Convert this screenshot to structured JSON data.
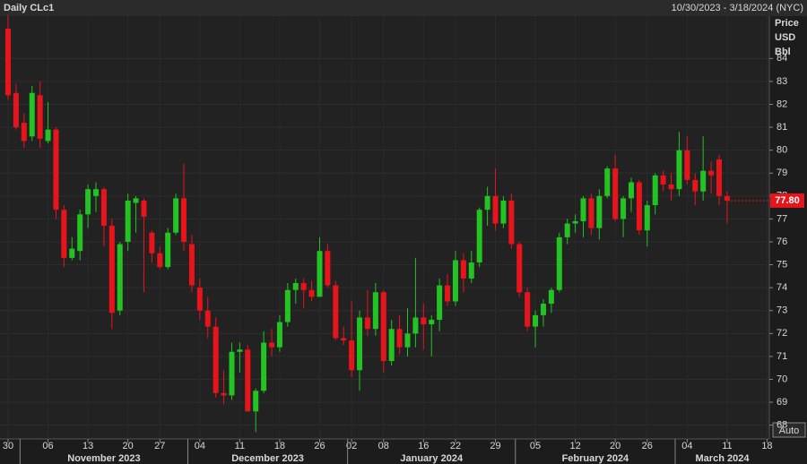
{
  "chart_data": {
    "type": "candlestick",
    "title": "Daily CLc1",
    "date_range": "10/30/2023 - 3/18/2024 (NYC)",
    "y_axis_label": [
      "Price",
      "USD",
      "Bbl"
    ],
    "auto_button": "Auto",
    "up_color": "#22c322",
    "down_color": "#e8141c",
    "grid": true,
    "categories": [
      "10/30/2023",
      "10/31/2023",
      "11/01/2023",
      "11/02/2023",
      "11/03/2023",
      "11/06/2023",
      "11/07/2023",
      "11/08/2023",
      "11/09/2023",
      "11/10/2023",
      "11/13/2023",
      "11/14/2023",
      "11/15/2023",
      "11/16/2023",
      "11/17/2023",
      "11/20/2023",
      "11/21/2023",
      "11/22/2023",
      "11/24/2023",
      "11/27/2023",
      "11/28/2023",
      "11/29/2023",
      "11/30/2023",
      "12/01/2023",
      "12/04/2023",
      "12/05/2023",
      "12/06/2023",
      "12/07/2023",
      "12/08/2023",
      "12/11/2023",
      "12/12/2023",
      "12/13/2023",
      "12/14/2023",
      "12/15/2023",
      "12/18/2023",
      "12/19/2023",
      "12/20/2023",
      "12/21/2023",
      "12/22/2023",
      "12/26/2023",
      "12/27/2023",
      "12/28/2023",
      "12/29/2023",
      "01/02/2024",
      "01/03/2024",
      "01/04/2024",
      "01/05/2024",
      "01/08/2024",
      "01/09/2024",
      "01/10/2024",
      "01/11/2024",
      "01/12/2024",
      "01/16/2024",
      "01/17/2024",
      "01/18/2024",
      "01/19/2024",
      "01/22/2024",
      "01/23/2024",
      "01/24/2024",
      "01/25/2024",
      "01/26/2024",
      "01/29/2024",
      "01/30/2024",
      "01/31/2024",
      "02/01/2024",
      "02/02/2024",
      "02/05/2024",
      "02/06/2024",
      "02/07/2024",
      "02/08/2024",
      "02/09/2024",
      "02/12/2024",
      "02/13/2024",
      "02/14/2024",
      "02/15/2024",
      "02/16/2024",
      "02/20/2024",
      "02/21/2024",
      "02/22/2024",
      "02/23/2024",
      "02/26/2024",
      "02/27/2024",
      "02/28/2024",
      "02/29/2024",
      "03/01/2024",
      "03/04/2024",
      "03/05/2024",
      "03/06/2024",
      "03/07/2024",
      "03/08/2024",
      "03/11/2024"
    ],
    "open": [
      85.3,
      82.5,
      81.2,
      80.6,
      82.4,
      80.4,
      80.9,
      77.4,
      75.3,
      75.6,
      77.2,
      78.0,
      78.3,
      76.7,
      73.0,
      76.0,
      77.7,
      77.8,
      76.4,
      75.5,
      74.9,
      76.4,
      77.9,
      75.9,
      74.0,
      73.0,
      72.3,
      69.4,
      69.3,
      71.2,
      71.3,
      68.6,
      69.5,
      71.6,
      71.4,
      72.5,
      73.9,
      74.2,
      73.9,
      73.6,
      75.6,
      74.1,
      71.8,
      71.7,
      70.4,
      72.7,
      72.2,
      73.8,
      70.8,
      72.2,
      71.4,
      72.0,
      72.7,
      72.4,
      72.6,
      74.1,
      73.4,
      75.2,
      74.4,
      75.1,
      77.4,
      78.0,
      76.8,
      77.8,
      75.9,
      73.8,
      72.3,
      72.8,
      73.3,
      73.9,
      76.2,
      76.8,
      76.9,
      77.9,
      76.6,
      78.0,
      79.2,
      77.0,
      77.9,
      78.6,
      76.5,
      77.6,
      78.9,
      78.5,
      78.3,
      80.0,
      78.7,
      78.2,
      79.1,
      79.6,
      78.0
    ],
    "high": [
      85.9,
      82.9,
      81.6,
      82.8,
      83.0,
      82.1,
      81.0,
      77.6,
      76.2,
      77.4,
      78.5,
      78.6,
      78.4,
      77.0,
      76.0,
      78.1,
      78.0,
      77.9,
      76.5,
      75.8,
      76.6,
      78.1,
      79.4,
      76.3,
      74.4,
      73.6,
      72.7,
      70.4,
      71.6,
      71.6,
      71.5,
      69.6,
      72.1,
      72.2,
      72.8,
      74.2,
      74.4,
      74.4,
      74.3,
      76.2,
      75.9,
      74.3,
      72.3,
      73.4,
      73.0,
      73.9,
      74.2,
      73.9,
      72.6,
      72.8,
      73.1,
      75.3,
      73.3,
      72.8,
      74.4,
      74.6,
      75.6,
      75.5,
      75.6,
      77.5,
      78.4,
      79.2,
      78.0,
      78.1,
      76.0,
      74.0,
      73.0,
      73.5,
      74.0,
      76.4,
      77.0,
      77.2,
      78.0,
      78.1,
      78.3,
      79.3,
      79.8,
      78.0,
      78.8,
      78.7,
      77.8,
      79.0,
      79.1,
      79.0,
      80.8,
      80.6,
      79.0,
      80.6,
      79.5,
      79.8,
      78.2
    ],
    "low": [
      82.2,
      80.9,
      80.1,
      80.4,
      80.1,
      80.3,
      77.0,
      74.9,
      75.2,
      75.2,
      76.6,
      77.3,
      75.8,
      72.2,
      72.8,
      75.6,
      76.4,
      73.8,
      75.1,
      74.8,
      74.8,
      76.3,
      75.6,
      73.8,
      72.6,
      71.8,
      69.2,
      68.9,
      69.1,
      70.3,
      68.6,
      67.7,
      69.4,
      71.0,
      71.2,
      72.3,
      73.3,
      73.1,
      73.4,
      73.6,
      74.0,
      71.7,
      71.5,
      70.1,
      69.5,
      71.9,
      71.9,
      70.3,
      70.6,
      71.1,
      71.0,
      71.4,
      71.3,
      71.0,
      72.1,
      73.2,
      73.2,
      73.8,
      74.2,
      74.9,
      76.7,
      76.5,
      76.6,
      75.7,
      73.6,
      72.1,
      71.4,
      72.3,
      72.9,
      73.8,
      75.9,
      76.4,
      76.2,
      76.3,
      76.1,
      77.9,
      76.9,
      76.2,
      77.3,
      76.3,
      75.8,
      77.2,
      78.2,
      77.8,
      78.0,
      78.5,
      77.6,
      77.8,
      78.1,
      77.6,
      76.8
    ],
    "close": [
      82.4,
      81.0,
      80.4,
      82.5,
      80.5,
      80.9,
      77.4,
      75.3,
      75.7,
      77.2,
      78.3,
      78.3,
      76.7,
      72.9,
      75.9,
      77.8,
      77.9,
      77.1,
      75.5,
      74.9,
      76.4,
      77.9,
      76.0,
      74.1,
      73.0,
      72.3,
      69.4,
      69.3,
      71.2,
      71.3,
      68.6,
      69.5,
      71.6,
      71.4,
      72.5,
      73.9,
      74.2,
      73.9,
      73.6,
      75.6,
      74.1,
      71.8,
      71.7,
      70.4,
      72.7,
      72.2,
      73.8,
      70.8,
      72.2,
      71.4,
      72.0,
      72.7,
      72.4,
      72.6,
      74.1,
      73.4,
      75.2,
      74.4,
      75.1,
      77.4,
      78.0,
      76.8,
      77.8,
      75.9,
      73.8,
      72.3,
      72.8,
      73.3,
      73.9,
      76.2,
      76.8,
      76.9,
      77.9,
      76.6,
      78.0,
      79.2,
      77.0,
      77.9,
      78.6,
      76.5,
      77.6,
      78.9,
      78.5,
      78.3,
      80.0,
      78.7,
      78.2,
      79.1,
      78.9,
      78.0,
      77.8
    ],
    "last_price": 77.8,
    "last_price_label": "77.80",
    "ylim": [
      67.4,
      85.85
    ],
    "yticks": [
      68,
      69,
      70,
      71,
      72,
      73,
      74,
      75,
      76,
      77,
      78,
      79,
      80,
      81,
      82,
      83,
      84
    ],
    "xticks": [
      {
        "value": "10/30/2023",
        "label": "30"
      },
      {
        "value": "11/06/2023",
        "label": "06"
      },
      {
        "value": "11/13/2023",
        "label": "13"
      },
      {
        "value": "11/20/2023",
        "label": "20"
      },
      {
        "value": "11/27/2023",
        "label": "27"
      },
      {
        "value": "12/04/2023",
        "label": "04"
      },
      {
        "value": "12/11/2023",
        "label": "11"
      },
      {
        "value": "12/18/2023",
        "label": "18"
      },
      {
        "value": "12/26/2023",
        "label": "26"
      },
      {
        "value": "01/02/2024",
        "label": "02"
      },
      {
        "value": "01/08/2024",
        "label": "08"
      },
      {
        "value": "01/16/2024",
        "label": "16"
      },
      {
        "value": "01/22/2024",
        "label": "22"
      },
      {
        "value": "01/29/2024",
        "label": "29"
      },
      {
        "value": "02/05/2024",
        "label": "05"
      },
      {
        "value": "02/12/2024",
        "label": "12"
      },
      {
        "value": "02/20/2024",
        "label": "20"
      },
      {
        "value": "02/26/2024",
        "label": "26"
      },
      {
        "value": "03/04/2024",
        "label": "04"
      },
      {
        "value": "03/11/2024",
        "label": "11"
      },
      {
        "value": "03/18/2024",
        "label": "18"
      }
    ],
    "months": [
      {
        "value": "11/01/2023",
        "label": "November 2023"
      },
      {
        "value": "12/01/2023",
        "label": "December 2023"
      },
      {
        "value": "01/02/2024",
        "label": "January 2024"
      },
      {
        "value": "02/01/2024",
        "label": "February 2024"
      },
      {
        "value": "03/01/2024",
        "label": "March 2024"
      }
    ]
  }
}
